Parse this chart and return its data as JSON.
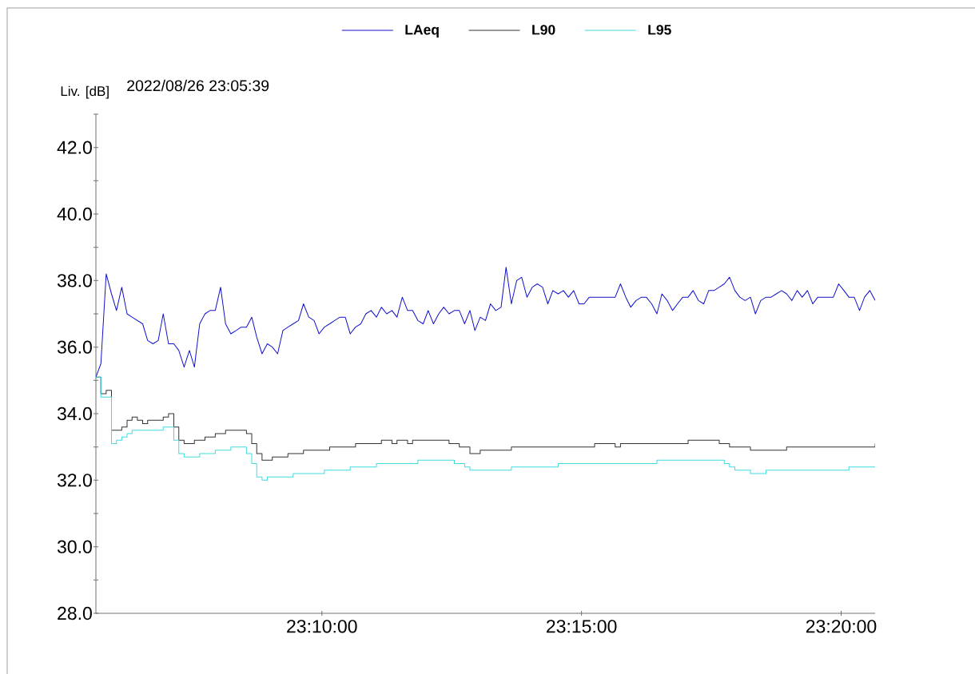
{
  "chart_data": {
    "type": "line",
    "title": "2022/08/26 23:05:39",
    "ylabel": "Liv. [dB]",
    "legend": "top",
    "xlim": [
      23.0942,
      23.3442
    ],
    "xticks": [
      {
        "value": 23.1667,
        "label": "23:10:00"
      },
      {
        "value": 23.25,
        "label": "23:15:00"
      },
      {
        "value": 23.3333,
        "label": "23:20:00"
      }
    ],
    "ylim": [
      28,
      43
    ],
    "yticks": [
      {
        "value": 28,
        "label": "28.0"
      },
      {
        "value": 29,
        "label": null
      },
      {
        "value": 30,
        "label": "30.0"
      },
      {
        "value": 31,
        "label": null
      },
      {
        "value": 32,
        "label": "32.0"
      },
      {
        "value": 33,
        "label": null
      },
      {
        "value": 34,
        "label": "34.0"
      },
      {
        "value": 35,
        "label": null
      },
      {
        "value": 36,
        "label": "36.0"
      },
      {
        "value": 37,
        "label": null
      },
      {
        "value": 38,
        "label": "38.0"
      },
      {
        "value": 39,
        "label": null
      },
      {
        "value": 40,
        "label": "40.0"
      },
      {
        "value": 41,
        "label": null
      },
      {
        "value": 42,
        "label": "42.0"
      },
      {
        "value": 43,
        "label": null
      }
    ],
    "x": [
      23.0942,
      23.0958,
      23.0975,
      23.0992,
      23.1008,
      23.1025,
      23.1042,
      23.1058,
      23.1075,
      23.1092,
      23.1108,
      23.1125,
      23.1142,
      23.1158,
      23.1175,
      23.1192,
      23.1208,
      23.1225,
      23.1242,
      23.1258,
      23.1275,
      23.1292,
      23.1308,
      23.1325,
      23.1342,
      23.1358,
      23.1375,
      23.1392,
      23.1408,
      23.1425,
      23.1442,
      23.1458,
      23.1475,
      23.1492,
      23.1508,
      23.1525,
      23.1542,
      23.1558,
      23.1575,
      23.1592,
      23.1608,
      23.1625,
      23.1642,
      23.1658,
      23.1675,
      23.1692,
      23.1708,
      23.1725,
      23.1742,
      23.1758,
      23.1775,
      23.1792,
      23.1808,
      23.1825,
      23.1842,
      23.1858,
      23.1875,
      23.1892,
      23.1908,
      23.1925,
      23.1942,
      23.1958,
      23.1975,
      23.1992,
      23.2008,
      23.2025,
      23.2042,
      23.2058,
      23.2075,
      23.2092,
      23.2108,
      23.2125,
      23.2142,
      23.2158,
      23.2175,
      23.2192,
      23.2208,
      23.2225,
      23.2242,
      23.2258,
      23.2275,
      23.2292,
      23.2308,
      23.2325,
      23.2342,
      23.2358,
      23.2375,
      23.2392,
      23.2408,
      23.2425,
      23.2442,
      23.2458,
      23.2475,
      23.2492,
      23.2508,
      23.2525,
      23.2542,
      23.2558,
      23.2575,
      23.2592,
      23.2608,
      23.2625,
      23.2642,
      23.2658,
      23.2675,
      23.2692,
      23.2708,
      23.2725,
      23.2742,
      23.2758,
      23.2775,
      23.2792,
      23.2808,
      23.2825,
      23.2842,
      23.2858,
      23.2875,
      23.2892,
      23.2908,
      23.2925,
      23.2942,
      23.2958,
      23.2975,
      23.2992,
      23.3008,
      23.3025,
      23.3042,
      23.3058,
      23.3075,
      23.3092,
      23.3108,
      23.3125,
      23.3142,
      23.3158,
      23.3175,
      23.3192,
      23.3208,
      23.3225,
      23.3242,
      23.3258,
      23.3275,
      23.3292,
      23.3308,
      23.3325,
      23.3342,
      23.3358,
      23.3375,
      23.3392,
      23.3408,
      23.3425,
      23.3442
    ],
    "series": [
      {
        "name": "LAeq",
        "color": "#1010cc",
        "values": [
          35.1,
          35.5,
          38.2,
          37.6,
          37.1,
          37.8,
          37.0,
          36.9,
          36.8,
          36.7,
          36.2,
          36.1,
          36.2,
          37.0,
          36.1,
          36.1,
          35.9,
          35.4,
          35.9,
          35.4,
          36.7,
          37.0,
          37.1,
          37.1,
          37.8,
          36.7,
          36.4,
          36.5,
          36.6,
          36.6,
          36.9,
          36.3,
          35.8,
          36.1,
          36.0,
          35.8,
          36.5,
          36.6,
          36.7,
          36.8,
          37.3,
          36.9,
          36.8,
          36.4,
          36.6,
          36.7,
          36.8,
          36.9,
          36.9,
          36.4,
          36.6,
          36.7,
          37.0,
          37.1,
          36.9,
          37.2,
          37.0,
          37.1,
          36.9,
          37.5,
          37.1,
          37.1,
          36.8,
          36.7,
          37.1,
          36.7,
          37.0,
          37.2,
          37.0,
          37.1,
          37.1,
          36.7,
          37.1,
          36.5,
          36.9,
          36.8,
          37.3,
          37.1,
          37.2,
          38.4,
          37.3,
          38.0,
          38.1,
          37.5,
          37.8,
          37.9,
          37.8,
          37.3,
          37.7,
          37.6,
          37.7,
          37.5,
          37.7,
          37.3,
          37.3,
          37.5,
          37.5,
          37.5,
          37.5,
          37.5,
          37.5,
          37.9,
          37.5,
          37.2,
          37.4,
          37.5,
          37.5,
          37.3,
          37.0,
          37.6,
          37.4,
          37.1,
          37.3,
          37.5,
          37.5,
          37.7,
          37.4,
          37.3,
          37.7,
          37.7,
          37.8,
          37.9,
          38.1,
          37.7,
          37.5,
          37.4,
          37.5,
          37.0,
          37.4,
          37.5,
          37.5,
          37.6,
          37.7,
          37.6,
          37.4,
          37.7,
          37.5,
          37.7,
          37.3,
          37.5,
          37.5,
          37.5,
          37.5,
          37.9,
          37.7,
          37.5,
          37.5,
          37.1,
          37.5,
          37.7,
          37.4
        ]
      },
      {
        "name": "L90",
        "type": "step",
        "color": "#333333",
        "values": [
          35.1,
          34.6,
          34.7,
          33.5,
          33.5,
          33.6,
          33.8,
          33.9,
          33.8,
          33.7,
          33.8,
          33.8,
          33.8,
          33.9,
          34.0,
          33.6,
          33.2,
          33.1,
          33.1,
          33.2,
          33.2,
          33.3,
          33.3,
          33.4,
          33.4,
          33.5,
          33.5,
          33.5,
          33.5,
          33.4,
          33.1,
          32.8,
          32.6,
          32.6,
          32.7,
          32.7,
          32.7,
          32.8,
          32.8,
          32.8,
          32.9,
          32.9,
          32.9,
          32.9,
          32.9,
          33.0,
          33.0,
          33.0,
          33.0,
          33.0,
          33.1,
          33.1,
          33.1,
          33.1,
          33.1,
          33.2,
          33.2,
          33.1,
          33.2,
          33.2,
          33.1,
          33.2,
          33.2,
          33.2,
          33.2,
          33.2,
          33.2,
          33.2,
          33.1,
          33.1,
          33.0,
          33.0,
          32.8,
          32.8,
          32.9,
          32.9,
          32.9,
          32.9,
          32.9,
          32.9,
          33.0,
          33.0,
          33.0,
          33.0,
          33.0,
          33.0,
          33.0,
          33.0,
          33.0,
          33.0,
          33.0,
          33.0,
          33.0,
          33.0,
          33.0,
          33.0,
          33.1,
          33.1,
          33.1,
          33.1,
          33.0,
          33.1,
          33.1,
          33.1,
          33.1,
          33.1,
          33.1,
          33.1,
          33.1,
          33.1,
          33.1,
          33.1,
          33.1,
          33.1,
          33.2,
          33.2,
          33.2,
          33.2,
          33.2,
          33.2,
          33.1,
          33.1,
          33.0,
          33.0,
          33.0,
          33.0,
          32.9,
          32.9,
          32.9,
          32.9,
          32.9,
          32.9,
          32.9,
          33.0,
          33.0,
          33.0,
          33.0,
          33.0,
          33.0,
          33.0,
          33.0,
          33.0,
          33.0,
          33.0,
          33.0,
          33.0,
          33.0,
          33.0,
          33.0,
          33.0,
          33.1
        ]
      },
      {
        "name": "L95",
        "type": "step",
        "color": "#40dcdc",
        "values": [
          35.1,
          34.5,
          34.5,
          33.1,
          33.2,
          33.3,
          33.4,
          33.5,
          33.5,
          33.5,
          33.5,
          33.5,
          33.5,
          33.6,
          33.6,
          33.2,
          32.8,
          32.7,
          32.7,
          32.7,
          32.8,
          32.8,
          32.8,
          32.9,
          32.9,
          32.9,
          33.0,
          33.0,
          33.0,
          32.8,
          32.5,
          32.1,
          32.0,
          32.1,
          32.1,
          32.1,
          32.1,
          32.1,
          32.2,
          32.2,
          32.2,
          32.2,
          32.2,
          32.2,
          32.3,
          32.3,
          32.3,
          32.3,
          32.3,
          32.4,
          32.4,
          32.4,
          32.4,
          32.4,
          32.5,
          32.5,
          32.5,
          32.5,
          32.5,
          32.5,
          32.5,
          32.5,
          32.6,
          32.6,
          32.6,
          32.6,
          32.6,
          32.6,
          32.6,
          32.5,
          32.5,
          32.4,
          32.3,
          32.3,
          32.3,
          32.3,
          32.3,
          32.3,
          32.3,
          32.3,
          32.4,
          32.4,
          32.4,
          32.4,
          32.4,
          32.4,
          32.4,
          32.4,
          32.4,
          32.5,
          32.5,
          32.5,
          32.5,
          32.5,
          32.5,
          32.5,
          32.5,
          32.5,
          32.5,
          32.5,
          32.5,
          32.5,
          32.5,
          32.5,
          32.5,
          32.5,
          32.5,
          32.5,
          32.6,
          32.6,
          32.6,
          32.6,
          32.6,
          32.6,
          32.6,
          32.6,
          32.6,
          32.6,
          32.6,
          32.6,
          32.6,
          32.5,
          32.4,
          32.3,
          32.3,
          32.3,
          32.2,
          32.2,
          32.2,
          32.3,
          32.3,
          32.3,
          32.3,
          32.3,
          32.3,
          32.3,
          32.3,
          32.3,
          32.3,
          32.3,
          32.3,
          32.3,
          32.3,
          32.3,
          32.3,
          32.4,
          32.4,
          32.4,
          32.4,
          32.4,
          32.4
        ]
      }
    ]
  }
}
